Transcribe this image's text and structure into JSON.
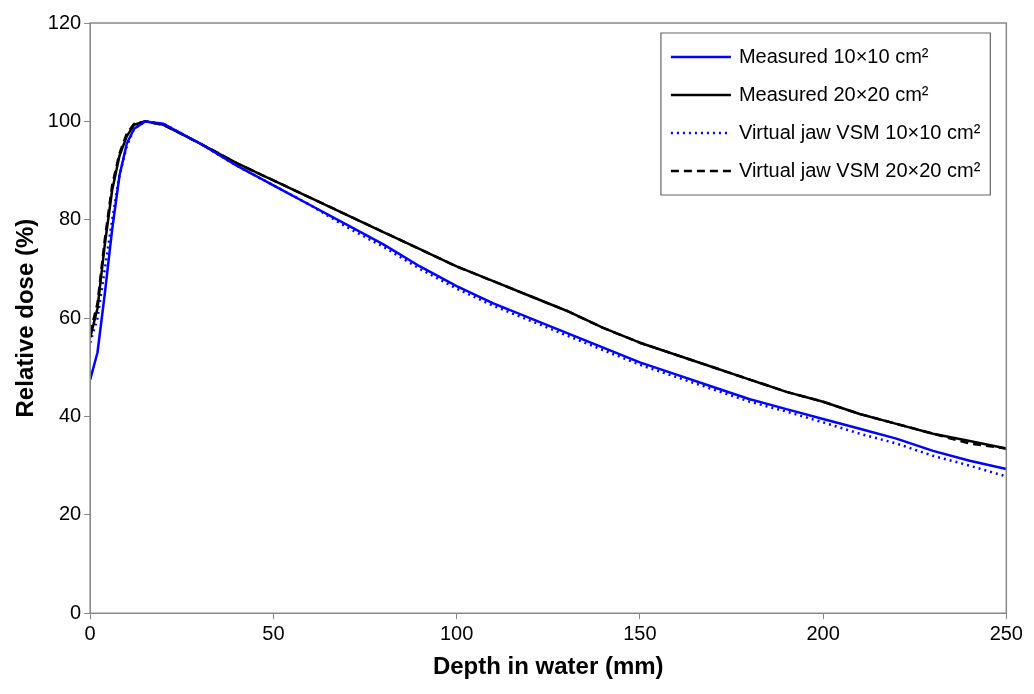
{
  "chart_data": {
    "type": "line",
    "xlabel": "Depth in water (mm)",
    "ylabel": "Relative dose (%)",
    "xlim": [
      0,
      250
    ],
    "ylim": [
      0,
      120
    ],
    "xticks": [
      0,
      50,
      100,
      150,
      200,
      250
    ],
    "yticks": [
      0,
      20,
      40,
      60,
      80,
      100,
      120
    ],
    "grid": false,
    "legend": "top right",
    "marker": "none",
    "x": [
      0,
      2,
      4,
      6,
      8,
      10,
      12,
      15,
      20,
      30,
      40,
      50,
      60,
      70,
      80,
      90,
      100,
      110,
      120,
      130,
      140,
      150,
      160,
      170,
      180,
      190,
      200,
      210,
      220,
      230,
      240,
      250
    ],
    "series": [
      {
        "name": "Measured 10×10 cm²",
        "color": "#0000ff",
        "line_style": "solid",
        "values": [
          47.5,
          53,
          65,
          78,
          89,
          95.5,
          98.5,
          100,
          99.5,
          95.5,
          91,
          87,
          83,
          79,
          75,
          70.5,
          66.5,
          63,
          60,
          57,
          54,
          51,
          48.5,
          46,
          43.5,
          41.5,
          39.5,
          37.5,
          35.5,
          33,
          31,
          29.3
        ]
      },
      {
        "name": "Measured 20×20 cm²",
        "color": "#000000",
        "line_style": "solid",
        "values": [
          56,
          62,
          75,
          86,
          93,
          97,
          99.3,
          100,
          99.3,
          95.5,
          91.5,
          88,
          84.5,
          81,
          77.5,
          74,
          70.5,
          67.5,
          64.5,
          61.5,
          58,
          55,
          52.5,
          50,
          47.5,
          45,
          43,
          40.5,
          38.5,
          36.5,
          35,
          33.5
        ]
      },
      {
        "name": "Virtual jaw VSM 10×10 cm²",
        "color": "#0000ff",
        "line_style": "dotted",
        "values": [
          55,
          60,
          70,
          80,
          89,
          95,
          98.5,
          100,
          99.5,
          95.5,
          91,
          87,
          83,
          78.5,
          74.5,
          70,
          66,
          62.5,
          59.5,
          56.5,
          53.5,
          50.5,
          48,
          45.5,
          43,
          41,
          38.8,
          36.5,
          34.5,
          32,
          30,
          27.8
        ]
      },
      {
        "name": "Virtual jaw VSM 20×20 cm²",
        "color": "#000000",
        "line_style": "dashed",
        "values": [
          57,
          63,
          76,
          87,
          93.5,
          97.5,
          99.5,
          100,
          99.3,
          95.5,
          91.5,
          88,
          84.5,
          81,
          77.5,
          74,
          70.5,
          67.5,
          64.5,
          61.5,
          58,
          55,
          52.5,
          50,
          47.5,
          45,
          43,
          40.5,
          38.5,
          36.5,
          34.5,
          33.5
        ]
      }
    ]
  }
}
